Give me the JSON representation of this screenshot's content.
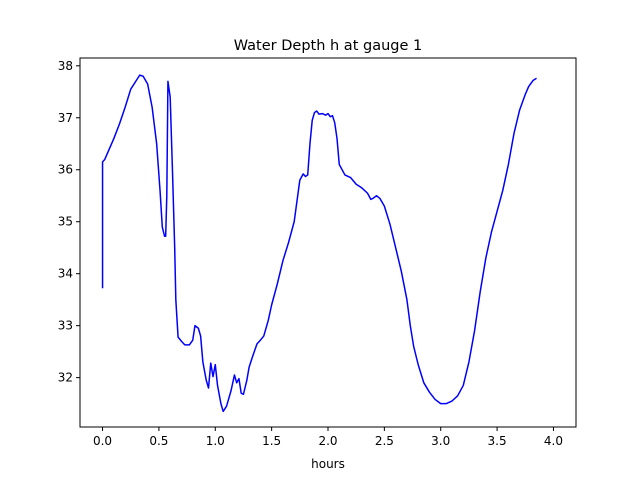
{
  "chart_data": {
    "type": "line",
    "title": "Water Depth h at gauge 1",
    "xlabel": "hours",
    "ylabel": "",
    "xlim": [
      -0.2,
      4.2
    ],
    "ylim": [
      31.05,
      38.15
    ],
    "xticks": [
      0.0,
      0.5,
      1.0,
      1.5,
      2.0,
      2.5,
      3.0,
      3.5,
      4.0
    ],
    "xtick_labels": [
      "0.0",
      "0.5",
      "1.0",
      "1.5",
      "2.0",
      "2.5",
      "3.0",
      "3.5",
      "4.0"
    ],
    "yticks": [
      32,
      33,
      34,
      35,
      36,
      37,
      38
    ],
    "ytick_labels": [
      "32",
      "33",
      "34",
      "35",
      "36",
      "37",
      "38"
    ],
    "grid": false,
    "series": [
      {
        "color": "#0000ff",
        "points": [
          [
            0.0,
            33.72
          ],
          [
            0.0,
            36.15
          ],
          [
            0.02,
            36.2
          ],
          [
            0.05,
            36.35
          ],
          [
            0.1,
            36.6
          ],
          [
            0.15,
            36.88
          ],
          [
            0.2,
            37.2
          ],
          [
            0.25,
            37.55
          ],
          [
            0.3,
            37.72
          ],
          [
            0.33,
            37.82
          ],
          [
            0.36,
            37.8
          ],
          [
            0.4,
            37.65
          ],
          [
            0.44,
            37.2
          ],
          [
            0.48,
            36.5
          ],
          [
            0.51,
            35.6
          ],
          [
            0.53,
            34.9
          ],
          [
            0.55,
            34.72
          ],
          [
            0.56,
            34.72
          ],
          [
            0.57,
            35.5
          ],
          [
            0.58,
            37.7
          ],
          [
            0.6,
            37.4
          ],
          [
            0.62,
            36.0
          ],
          [
            0.64,
            34.5
          ],
          [
            0.65,
            33.5
          ],
          [
            0.67,
            32.78
          ],
          [
            0.7,
            32.7
          ],
          [
            0.73,
            32.63
          ],
          [
            0.77,
            32.63
          ],
          [
            0.8,
            32.72
          ],
          [
            0.82,
            33.0
          ],
          [
            0.85,
            32.95
          ],
          [
            0.87,
            32.8
          ],
          [
            0.89,
            32.3
          ],
          [
            0.92,
            31.95
          ],
          [
            0.94,
            31.8
          ],
          [
            0.96,
            32.28
          ],
          [
            0.98,
            32.02
          ],
          [
            1.0,
            32.25
          ],
          [
            1.02,
            31.85
          ],
          [
            1.05,
            31.5
          ],
          [
            1.07,
            31.35
          ],
          [
            1.1,
            31.45
          ],
          [
            1.14,
            31.75
          ],
          [
            1.17,
            32.05
          ],
          [
            1.19,
            31.9
          ],
          [
            1.21,
            31.98
          ],
          [
            1.23,
            31.7
          ],
          [
            1.25,
            31.68
          ],
          [
            1.28,
            31.95
          ],
          [
            1.3,
            32.2
          ],
          [
            1.33,
            32.4
          ],
          [
            1.37,
            32.65
          ],
          [
            1.4,
            32.72
          ],
          [
            1.43,
            32.8
          ],
          [
            1.47,
            33.1
          ],
          [
            1.5,
            33.4
          ],
          [
            1.55,
            33.8
          ],
          [
            1.6,
            34.25
          ],
          [
            1.65,
            34.6
          ],
          [
            1.7,
            35.0
          ],
          [
            1.75,
            35.8
          ],
          [
            1.78,
            35.92
          ],
          [
            1.8,
            35.87
          ],
          [
            1.82,
            35.9
          ],
          [
            1.84,
            36.5
          ],
          [
            1.86,
            36.95
          ],
          [
            1.88,
            37.1
          ],
          [
            1.9,
            37.13
          ],
          [
            1.92,
            37.07
          ],
          [
            1.95,
            37.08
          ],
          [
            1.98,
            37.05
          ],
          [
            2.0,
            37.08
          ],
          [
            2.02,
            37.02
          ],
          [
            2.04,
            37.04
          ],
          [
            2.06,
            36.9
          ],
          [
            2.08,
            36.6
          ],
          [
            2.1,
            36.1
          ],
          [
            2.15,
            35.9
          ],
          [
            2.2,
            35.85
          ],
          [
            2.25,
            35.72
          ],
          [
            2.3,
            35.65
          ],
          [
            2.35,
            35.55
          ],
          [
            2.38,
            35.43
          ],
          [
            2.4,
            35.45
          ],
          [
            2.43,
            35.5
          ],
          [
            2.46,
            35.45
          ],
          [
            2.5,
            35.3
          ],
          [
            2.55,
            34.95
          ],
          [
            2.6,
            34.5
          ],
          [
            2.65,
            34.05
          ],
          [
            2.7,
            33.5
          ],
          [
            2.73,
            33.0
          ],
          [
            2.76,
            32.6
          ],
          [
            2.8,
            32.25
          ],
          [
            2.85,
            31.9
          ],
          [
            2.9,
            31.72
          ],
          [
            2.95,
            31.58
          ],
          [
            3.0,
            31.5
          ],
          [
            3.05,
            31.5
          ],
          [
            3.1,
            31.55
          ],
          [
            3.15,
            31.65
          ],
          [
            3.2,
            31.85
          ],
          [
            3.25,
            32.3
          ],
          [
            3.3,
            32.9
          ],
          [
            3.35,
            33.65
          ],
          [
            3.4,
            34.3
          ],
          [
            3.45,
            34.8
          ],
          [
            3.5,
            35.2
          ],
          [
            3.55,
            35.6
          ],
          [
            3.6,
            36.1
          ],
          [
            3.65,
            36.7
          ],
          [
            3.7,
            37.15
          ],
          [
            3.75,
            37.45
          ],
          [
            3.78,
            37.6
          ],
          [
            3.82,
            37.72
          ],
          [
            3.85,
            37.76
          ]
        ]
      }
    ]
  }
}
